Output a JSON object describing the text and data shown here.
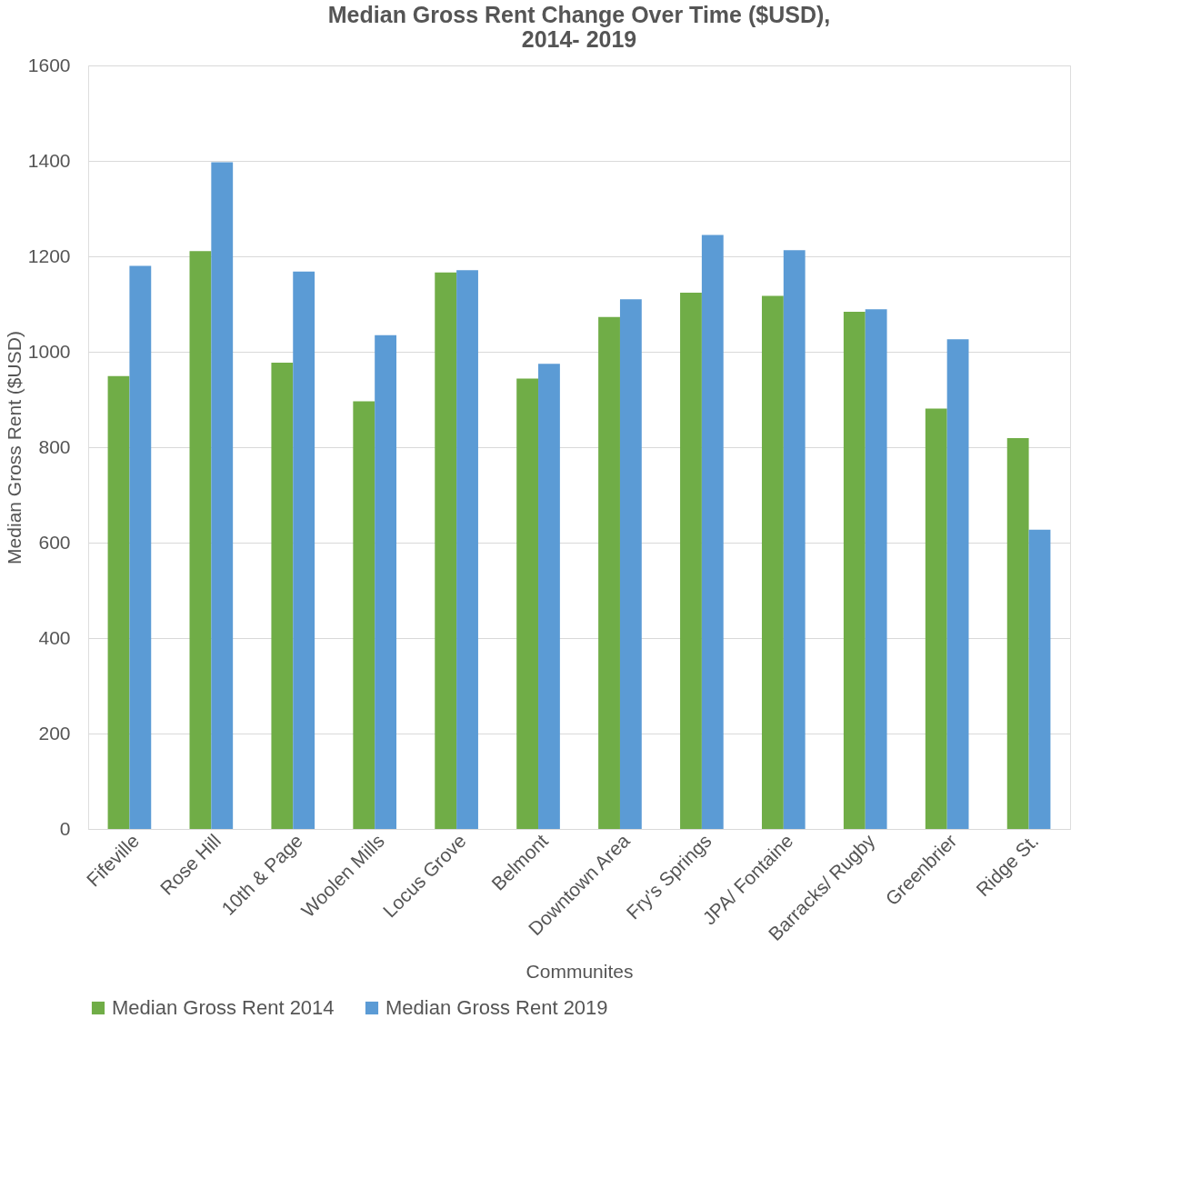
{
  "chart_data": {
    "type": "bar",
    "title": "Median Gross Rent Change Over Time ($USD),\n2014- 2019",
    "xlabel": "Communites",
    "ylabel": "Median Gross Rent ($USD)",
    "categories": [
      "Fifeville",
      "Rose Hill",
      "10th & Page",
      "Woolen Mills",
      "Locus Grove",
      "Belmont",
      "Downtown Area",
      "Fry's Springs",
      "JPA/ Fontaine",
      "Barracks/ Rugby",
      "Greenbrier",
      "Ridge St."
    ],
    "series": [
      {
        "name": "Median Gross Rent 2014",
        "color": "#70ad47",
        "values": [
          949,
          1211,
          977,
          896,
          1166,
          944,
          1073,
          1124,
          1117,
          1084,
          881,
          819
        ]
      },
      {
        "name": "Median Gross Rent 2019",
        "color": "#5b9bd5",
        "values": [
          1180,
          1397,
          1168,
          1035,
          1171,
          975,
          1110,
          1245,
          1213,
          1089,
          1026,
          627
        ]
      }
    ],
    "ylim": [
      0,
      1600
    ],
    "yticks": [
      0,
      200,
      400,
      600,
      800,
      1000,
      1200,
      1400,
      1600
    ],
    "grid": "y",
    "legend": "bottom"
  }
}
